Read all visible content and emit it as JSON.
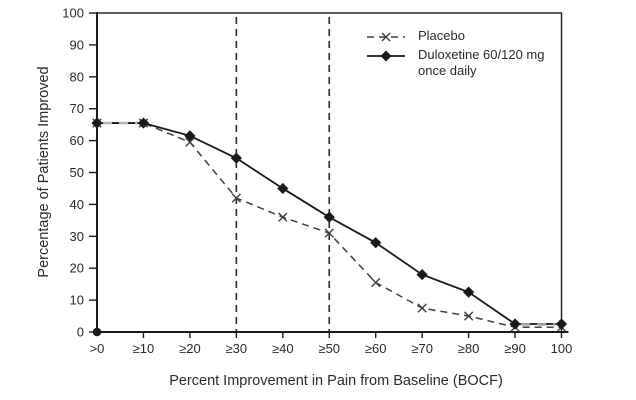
{
  "axes": {
    "x_title": "Percent Improvement in Pain from Baseline (BOCF)",
    "y_title": "Percentage of Patients Improved"
  },
  "legend": {
    "items": [
      {
        "label": "Placebo"
      },
      {
        "label": "Duloxetine 60/120 mg once daily"
      }
    ]
  },
  "colors": {
    "axis": "#1a1a1a",
    "text": "#2b2b2b",
    "duloxetine_line": "#1a1a1a",
    "placebo_line": "#3f3f3f",
    "reference_line": "#2b2b2b",
    "overlap_dash": "#b3b3b3",
    "background": "#ffffff"
  },
  "chart_data": {
    "type": "line",
    "title": "",
    "categories": [
      ">0",
      "≥10",
      "≥20",
      "≥30",
      "≥40",
      "≥50",
      "≥60",
      "≥70",
      "≥80",
      "≥90",
      "100"
    ],
    "series": [
      {
        "name": "Placebo",
        "style": "dashed",
        "marker": "x",
        "values": [
          65.5,
          65.5,
          59.5,
          42,
          36,
          31,
          15.5,
          7.5,
          5,
          1.5,
          1.5
        ]
      },
      {
        "name": "Duloxetine 60/120 mg once daily",
        "style": "solid",
        "marker": "diamond",
        "values": [
          65.5,
          65.5,
          61.5,
          54.5,
          45,
          36,
          28,
          18,
          12.5,
          2.5,
          2.5
        ]
      }
    ],
    "xlabel": "Percent Improvement in Pain from Baseline (BOCF)",
    "ylabel": "Percentage of Patients Improved",
    "ylim": [
      0,
      100
    ],
    "y_ticks": [
      0,
      10,
      20,
      30,
      40,
      50,
      60,
      70,
      80,
      90,
      100
    ],
    "reference_lines_at": [
      "≥30",
      "≥50"
    ],
    "overlap_gray_segments": [
      {
        "from": 0,
        "to": 1,
        "value": 65.5
      },
      {
        "from": 9,
        "to": 10,
        "value": 2.3
      }
    ],
    "grid": false,
    "legend_position": "inside-top-right",
    "origin_dot": true
  }
}
